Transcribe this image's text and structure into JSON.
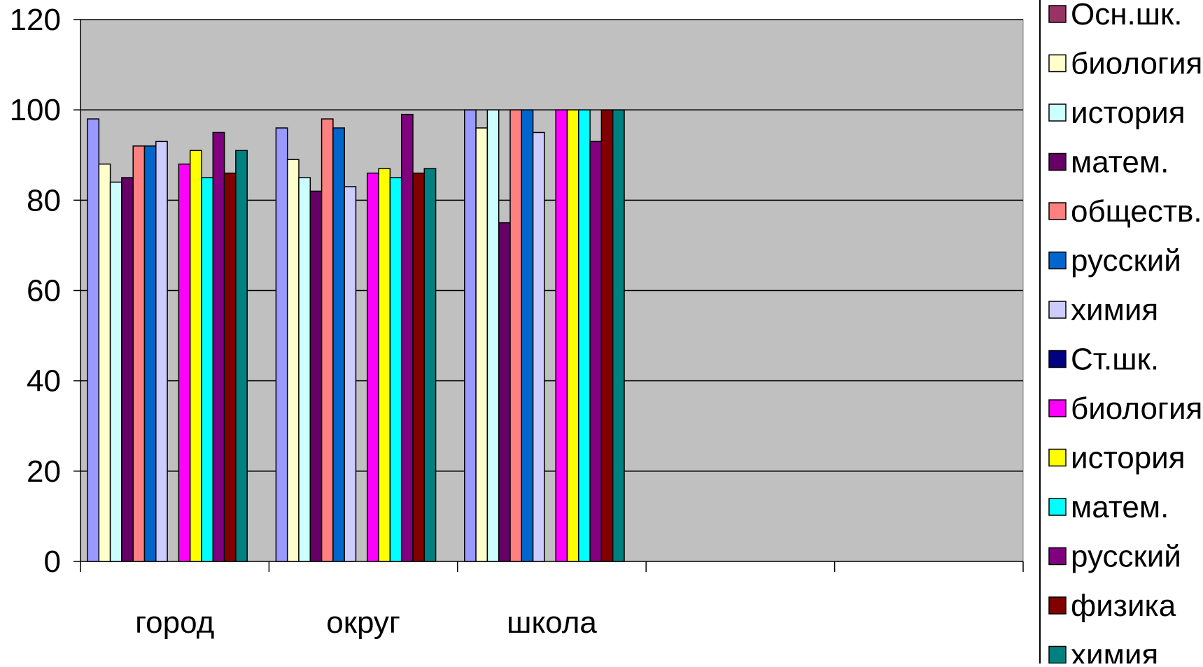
{
  "chart_data": {
    "type": "bar",
    "title": "",
    "xlabel": "",
    "ylabel": "",
    "ylim": [
      0,
      120
    ],
    "yticks": [
      "0",
      "20",
      "40",
      "60",
      "80",
      "100",
      "120"
    ],
    "categories": [
      "город",
      "округ",
      "школа",
      "",
      ""
    ],
    "grid": true,
    "legend_position": "right",
    "plot_background": "#C0C0C0",
    "series": [
      {
        "name": "Осн.шк.",
        "color": "#9999FF",
        "values": [
          98,
          96,
          100,
          null,
          null
        ]
      },
      {
        "name": "биология",
        "color": "#FFFFCC",
        "values": [
          88,
          89,
          96,
          null,
          null
        ]
      },
      {
        "name": "история",
        "color": "#CCFFFF",
        "values": [
          84,
          85,
          100,
          null,
          null
        ]
      },
      {
        "name": "матем.",
        "color": "#660066",
        "values": [
          85,
          82,
          75,
          null,
          null
        ]
      },
      {
        "name": "обществ.",
        "color": "#FF8080",
        "values": [
          92,
          98,
          100,
          null,
          null
        ]
      },
      {
        "name": "русский",
        "color": "#0066CC",
        "values": [
          92,
          96,
          100,
          null,
          null
        ]
      },
      {
        "name": "химия",
        "color": "#CCCCFF",
        "values": [
          93,
          83,
          95,
          null,
          null
        ]
      },
      {
        "name": "Ст.шк.",
        "color": "#000080",
        "values": [
          null,
          null,
          null,
          null,
          null
        ]
      },
      {
        "name": "биология",
        "color": "#FF00FF",
        "values": [
          88,
          86,
          100,
          null,
          null
        ]
      },
      {
        "name": "история",
        "color": "#FFFF00",
        "values": [
          91,
          87,
          100,
          null,
          null
        ]
      },
      {
        "name": "матем.",
        "color": "#00FFFF",
        "values": [
          85,
          85,
          100,
          null,
          null
        ]
      },
      {
        "name": "русский",
        "color": "#800080",
        "values": [
          95,
          99,
          93,
          null,
          null
        ]
      },
      {
        "name": "физика",
        "color": "#800000",
        "values": [
          86,
          86,
          100,
          null,
          null
        ]
      },
      {
        "name": "химия",
        "color": "#008080",
        "values": [
          91,
          87,
          100,
          null,
          null
        ]
      }
    ],
    "legend_swatch_colors": [
      "#993366",
      "#FFFFCC",
      "#CCFFFF",
      "#660066",
      "#FF8080",
      "#0066CC",
      "#CCCCFF",
      "#000080",
      "#FF00FF",
      "#FFFF00",
      "#00FFFF",
      "#800080",
      "#800000",
      "#008080"
    ]
  }
}
